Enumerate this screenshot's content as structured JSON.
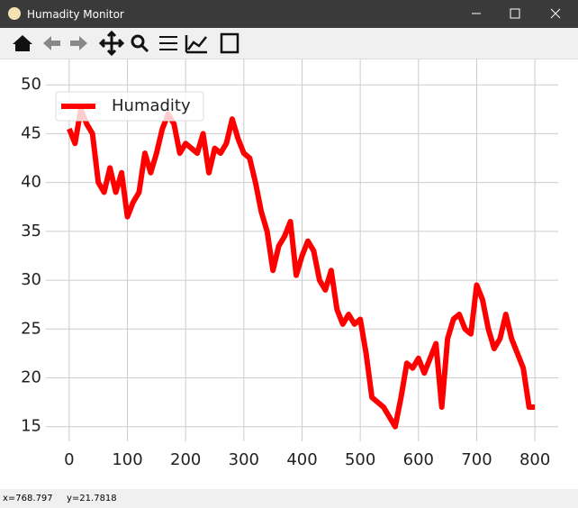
{
  "window": {
    "title": "Humadity Monitor"
  },
  "status": {
    "x": "x=768.797",
    "y": "y=21.7818"
  },
  "chart_data": {
    "type": "line",
    "x": [
      0,
      10,
      20,
      30,
      40,
      50,
      60,
      70,
      80,
      90,
      100,
      110,
      120,
      130,
      140,
      150,
      160,
      170,
      180,
      190,
      200,
      210,
      220,
      230,
      240,
      250,
      260,
      270,
      280,
      290,
      300,
      310,
      320,
      330,
      340,
      350,
      360,
      370,
      380,
      390,
      400,
      410,
      420,
      430,
      440,
      450,
      460,
      470,
      480,
      490,
      500,
      510,
      520,
      530,
      540,
      550,
      560,
      570,
      580,
      590,
      600,
      610,
      620,
      630,
      640,
      650,
      660,
      670,
      680,
      690,
      700,
      710,
      720,
      730,
      740,
      750,
      760,
      770,
      780,
      790,
      800
    ],
    "series": [
      {
        "name": "Humadity",
        "color": "#ff0000",
        "values": [
          45.5,
          44,
          47.5,
          46,
          45,
          40,
          39,
          41.5,
          39,
          41,
          36.5,
          38,
          39,
          43,
          41,
          43,
          45.5,
          47,
          46,
          43,
          44,
          43.5,
          43,
          45,
          41,
          43.5,
          43,
          44,
          46.5,
          44.5,
          43,
          42.5,
          40,
          37,
          35,
          31,
          33.5,
          34.5,
          36,
          30.5,
          32.5,
          34,
          33,
          30,
          29,
          31,
          27,
          25.5,
          26.5,
          25.5,
          26,
          22.5,
          18,
          17.5,
          17,
          16,
          15,
          18,
          21.5,
          21,
          22,
          20.5,
          22,
          23.5,
          17,
          24,
          26,
          26.5,
          25,
          24.5,
          29.5,
          28,
          25,
          23,
          24,
          26.5,
          24,
          22.5,
          21,
          17,
          17
        ]
      }
    ],
    "xlim": [
      -40,
      840
    ],
    "ylim": [
      13.5,
      52.6
    ],
    "xticks": [
      0,
      100,
      200,
      300,
      400,
      500,
      600,
      700,
      800
    ],
    "yticks": [
      15,
      20,
      25,
      30,
      35,
      40,
      45,
      50
    ],
    "grid": true,
    "legend": "upper-left"
  }
}
